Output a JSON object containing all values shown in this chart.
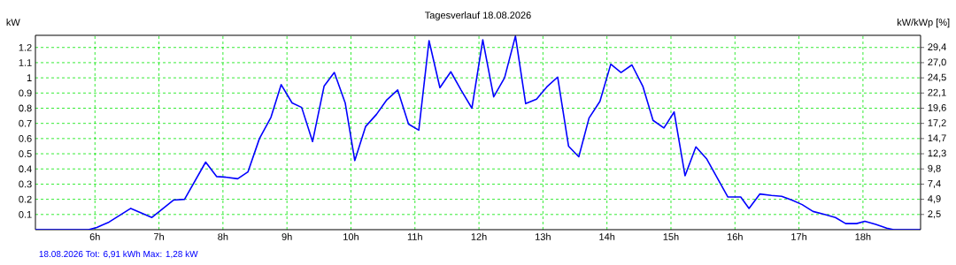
{
  "chart_data": {
    "type": "line",
    "title": "Tagesverlauf 18.08.2026",
    "ylabel": "kW",
    "y2label": "kW/kWp [%]",
    "annotations": [
      "18.08.2026 Tot: 6,91 kWh Max: 1,28 kW"
    ],
    "series": [
      {
        "color": "#0000ff",
        "x": [
          5.07,
          5.9,
          6.03,
          6.22,
          6.56,
          6.89,
          7.23,
          7.4,
          7.73,
          7.9,
          8.06,
          8.23,
          8.39,
          8.57,
          8.75,
          8.91,
          9.08,
          9.23,
          9.4,
          9.58,
          9.74,
          9.91,
          10.06,
          10.23,
          10.4,
          10.56,
          10.73,
          10.9,
          11.06,
          11.22,
          11.39,
          11.56,
          11.72,
          11.89,
          12.06,
          12.23,
          12.4,
          12.57,
          12.73,
          12.9,
          13.06,
          13.23,
          13.4,
          13.56,
          13.72,
          13.89,
          14.06,
          14.22,
          14.39,
          14.56,
          14.72,
          14.89,
          15.05,
          15.22,
          15.39,
          15.56,
          15.89,
          16.09,
          16.22,
          16.39,
          16.57,
          16.73,
          16.89,
          17.05,
          17.22,
          17.4,
          17.57,
          17.73,
          17.9,
          18.03,
          18.2,
          18.37,
          18.48,
          18.9
        ],
        "values": [
          0,
          0,
          0.015,
          0.05,
          0.14,
          0.08,
          0.195,
          0.2,
          0.445,
          0.35,
          0.345,
          0.335,
          0.38,
          0.6,
          0.74,
          0.955,
          0.835,
          0.805,
          0.58,
          0.945,
          1.035,
          0.835,
          0.455,
          0.68,
          0.76,
          0.855,
          0.92,
          0.695,
          0.655,
          1.245,
          0.935,
          1.04,
          0.92,
          0.8,
          1.25,
          0.875,
          1.0,
          1.275,
          0.83,
          0.86,
          0.94,
          1.005,
          0.55,
          0.48,
          0.735,
          0.845,
          1.09,
          1.035,
          1.085,
          0.945,
          0.72,
          0.67,
          0.775,
          0.355,
          0.545,
          0.465,
          0.215,
          0.215,
          0.14,
          0.235,
          0.225,
          0.22,
          0.195,
          0.165,
          0.12,
          0.1,
          0.08,
          0.04,
          0.04,
          0.055,
          0.035,
          0.01,
          0,
          0
        ]
      }
    ],
    "xlim": [
      5.07,
      18.9
    ],
    "ylim": [
      0,
      1.28
    ],
    "xticks": [
      {
        "value": 6,
        "label": "6h"
      },
      {
        "value": 7,
        "label": "7h"
      },
      {
        "value": 8,
        "label": "8h"
      },
      {
        "value": 9,
        "label": "9h"
      },
      {
        "value": 10,
        "label": "10h"
      },
      {
        "value": 11,
        "label": "11h"
      },
      {
        "value": 12,
        "label": "12h"
      },
      {
        "value": 13,
        "label": "13h"
      },
      {
        "value": 14,
        "label": "14h"
      },
      {
        "value": 15,
        "label": "15h"
      },
      {
        "value": 16,
        "label": "16h"
      },
      {
        "value": 17,
        "label": "17h"
      },
      {
        "value": 18,
        "label": "18h"
      }
    ],
    "yticks": [
      0.1,
      0.2,
      0.3,
      0.4,
      0.5,
      0.6,
      0.7,
      0.8,
      0.9,
      1,
      1.1,
      1.2
    ],
    "y2lim": [
      0,
      31.36
    ],
    "y2ticks": [
      {
        "value": 2.45,
        "label": "2,5"
      },
      {
        "value": 4.9,
        "label": "4,9"
      },
      {
        "value": 7.35,
        "label": "7,4"
      },
      {
        "value": 9.8,
        "label": "9,8"
      },
      {
        "value": 12.25,
        "label": "12,3"
      },
      {
        "value": 14.7,
        "label": "14,7"
      },
      {
        "value": 17.15,
        "label": "17,2"
      },
      {
        "value": 19.6,
        "label": "19,6"
      },
      {
        "value": 22.05,
        "label": "22,1"
      },
      {
        "value": 24.5,
        "label": "24,5"
      },
      {
        "value": 26.95,
        "label": "27,0"
      },
      {
        "value": 29.4,
        "label": "29,4"
      }
    ],
    "grid": true,
    "marker": "none",
    "line_style": "solid"
  }
}
